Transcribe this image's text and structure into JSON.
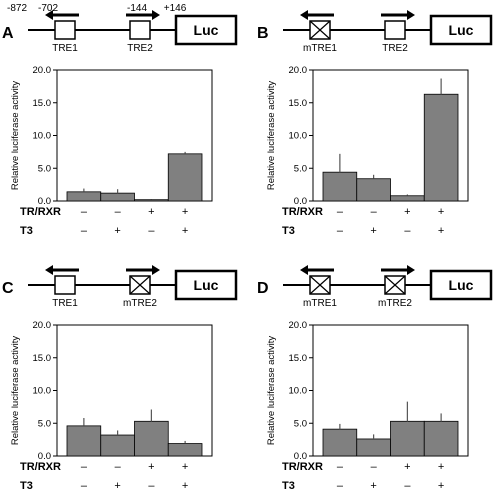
{
  "panels": [
    {
      "letter": "A",
      "construct": {
        "positions": [
          "-872",
          "-702",
          "-144",
          "+146"
        ],
        "elements": [
          {
            "label": "TRE1",
            "mutated": false,
            "arrow": "left"
          },
          {
            "label": "TRE2",
            "mutated": false,
            "arrow": "right"
          }
        ],
        "reporter": "Luc"
      }
    },
    {
      "letter": "B",
      "construct": {
        "positions": [],
        "elements": [
          {
            "label": "mTRE1",
            "mutated": true,
            "arrow": "left"
          },
          {
            "label": "TRE2",
            "mutated": false,
            "arrow": "right"
          }
        ],
        "reporter": "Luc"
      }
    },
    {
      "letter": "C",
      "construct": {
        "positions": [],
        "elements": [
          {
            "label": "TRE1",
            "mutated": false,
            "arrow": "left"
          },
          {
            "label": "mTRE2",
            "mutated": true,
            "arrow": "right"
          }
        ],
        "reporter": "Luc"
      }
    },
    {
      "letter": "D",
      "construct": {
        "positions": [],
        "elements": [
          {
            "label": "mTRE1",
            "mutated": true,
            "arrow": "left"
          },
          {
            "label": "mTRE2",
            "mutated": true,
            "arrow": "right"
          }
        ],
        "reporter": "Luc"
      }
    }
  ],
  "treatments": {
    "rows": [
      {
        "label": "TR/RXR",
        "values": [
          "–",
          "–",
          "+",
          "+"
        ]
      },
      {
        "label": "T3",
        "values": [
          "–",
          "+",
          "–",
          "+"
        ]
      }
    ]
  },
  "colors": {
    "bar": "#808080",
    "axis": "#000000"
  },
  "chart_data": [
    {
      "panel": "A",
      "type": "bar",
      "ylabel": "Relative luciferase activity",
      "ylim": [
        0,
        20
      ],
      "yticks": [
        "0.0",
        "5.0",
        "10.0",
        "15.0",
        "20.0"
      ],
      "values": [
        1.4,
        1.2,
        0.2,
        7.2
      ],
      "errors": [
        0.5,
        0.6,
        0.1,
        0.3
      ],
      "grid": false
    },
    {
      "panel": "B",
      "type": "bar",
      "ylabel": "Relative luciferase activity",
      "ylim": [
        0,
        20
      ],
      "yticks": [
        "0.0",
        "5.0",
        "10.0",
        "15.0",
        "20.0"
      ],
      "values": [
        4.4,
        3.4,
        0.8,
        16.3
      ],
      "errors": [
        2.8,
        0.6,
        0.2,
        2.4
      ],
      "grid": false
    },
    {
      "panel": "C",
      "type": "bar",
      "ylabel": "Relative luciferase activity",
      "ylim": [
        0,
        20
      ],
      "yticks": [
        "0.0",
        "5.0",
        "10.0",
        "15.0",
        "20.0"
      ],
      "values": [
        4.6,
        3.2,
        5.3,
        1.9
      ],
      "errors": [
        1.2,
        0.7,
        1.8,
        0.4
      ],
      "grid": false
    },
    {
      "panel": "D",
      "type": "bar",
      "ylabel": "Relative luciferase activity",
      "ylim": [
        0,
        20
      ],
      "yticks": [
        "0.0",
        "5.0",
        "10.0",
        "15.0",
        "20.0"
      ],
      "values": [
        4.1,
        2.6,
        5.3,
        5.3
      ],
      "errors": [
        0.8,
        0.7,
        3.0,
        1.2
      ],
      "grid": false
    }
  ]
}
